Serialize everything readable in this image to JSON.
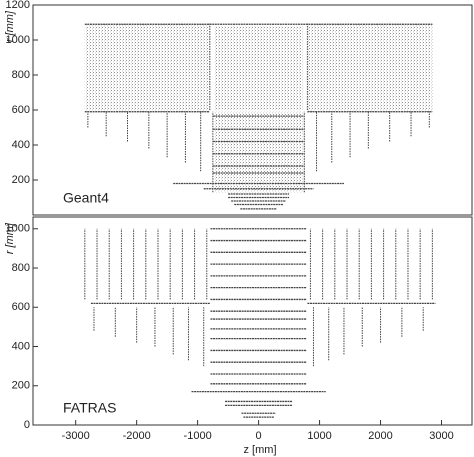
{
  "chart_data": [
    {
      "type": "scatter",
      "label": "Geant4",
      "ylabel": "r [mm]",
      "color": "#444",
      "xlim": [
        -3700,
        3500
      ],
      "ylim": [
        0,
        1200
      ],
      "yticks": [
        200,
        400,
        600,
        800,
        1000,
        1200
      ],
      "regions": [
        [
          -2850,
          -800,
          590,
          1090
        ],
        [
          800,
          2850,
          590,
          1090
        ],
        [
          -730,
          730,
          600,
          1080
        ],
        [
          -730,
          730,
          130,
          590
        ]
      ],
      "hlines": [
        [
          -2850,
          2850,
          1090
        ],
        [
          -2850,
          -800,
          590
        ],
        [
          800,
          2850,
          590
        ],
        [
          -750,
          750,
          565
        ],
        [
          -750,
          750,
          490
        ],
        [
          -750,
          750,
          420
        ],
        [
          -750,
          750,
          350
        ],
        [
          -750,
          750,
          280
        ],
        [
          -750,
          750,
          240
        ],
        [
          -1400,
          1400,
          180
        ],
        [
          -900,
          900,
          150
        ],
        [
          -500,
          500,
          120
        ],
        [
          -500,
          500,
          100
        ],
        [
          -450,
          450,
          80
        ],
        [
          -400,
          400,
          60
        ],
        [
          -300,
          300,
          35
        ]
      ],
      "vlines": [
        [
          -800,
          600,
          1100
        ],
        [
          800,
          600,
          1100
        ],
        [
          -750,
          130,
          590
        ],
        [
          750,
          130,
          590
        ],
        [
          -950,
          250,
          590
        ],
        [
          950,
          250,
          590
        ],
        [
          -1200,
          300,
          590
        ],
        [
          1200,
          300,
          590
        ],
        [
          -1500,
          330,
          590
        ],
        [
          1500,
          330,
          590
        ],
        [
          -1800,
          380,
          590
        ],
        [
          1800,
          380,
          590
        ],
        [
          -2150,
          420,
          590
        ],
        [
          2150,
          420,
          590
        ],
        [
          -2500,
          450,
          590
        ],
        [
          2500,
          450,
          590
        ],
        [
          -2800,
          500,
          590
        ],
        [
          2800,
          500,
          590
        ]
      ]
    },
    {
      "type": "scatter",
      "label": "FATRAS",
      "xlabel": "z [mm]",
      "ylabel": "r [mm]",
      "color": "#444",
      "xlim": [
        -3700,
        3500
      ],
      "ylim": [
        0,
        1060
      ],
      "yticks": [
        0,
        200,
        400,
        600,
        800,
        1000
      ],
      "xticks": [
        -3000,
        -2000,
        -1000,
        0,
        1000,
        2000,
        3000
      ],
      "regions": [],
      "hlines": [
        [
          -790,
          790,
          1000
        ],
        [
          -790,
          790,
          940
        ],
        [
          -790,
          790,
          880
        ],
        [
          -790,
          790,
          820
        ],
        [
          -790,
          790,
          760
        ],
        [
          -790,
          790,
          700
        ],
        [
          -790,
          790,
          640
        ],
        [
          -790,
          790,
          580
        ],
        [
          -790,
          790,
          540
        ],
        [
          -790,
          790,
          490
        ],
        [
          -790,
          790,
          440
        ],
        [
          -790,
          790,
          380
        ],
        [
          -790,
          790,
          320
        ],
        [
          -790,
          790,
          260
        ],
        [
          -790,
          790,
          210
        ],
        [
          -2750,
          -800,
          620
        ],
        [
          800,
          2900,
          620
        ],
        [
          -1100,
          1100,
          170
        ],
        [
          -550,
          550,
          120
        ],
        [
          -550,
          550,
          100
        ],
        [
          -280,
          280,
          60
        ],
        [
          -250,
          250,
          40
        ]
      ],
      "vlines": [
        [
          -2850,
          640,
          1000
        ],
        [
          -2650,
          640,
          1000
        ],
        [
          -2450,
          640,
          1000
        ],
        [
          -2250,
          640,
          1000
        ],
        [
          -2050,
          640,
          1000
        ],
        [
          -1850,
          640,
          1000
        ],
        [
          -1650,
          640,
          1000
        ],
        [
          -1450,
          640,
          1000
        ],
        [
          -1250,
          640,
          1000
        ],
        [
          -1050,
          640,
          1000
        ],
        [
          -850,
          640,
          1000
        ],
        [
          850,
          640,
          1000
        ],
        [
          1050,
          640,
          1000
        ],
        [
          1250,
          640,
          1000
        ],
        [
          1450,
          640,
          1000
        ],
        [
          1650,
          640,
          1000
        ],
        [
          1850,
          640,
          1000
        ],
        [
          2050,
          640,
          1000
        ],
        [
          2250,
          640,
          1000
        ],
        [
          2450,
          640,
          1000
        ],
        [
          2650,
          640,
          1000
        ],
        [
          2850,
          640,
          1000
        ],
        [
          -900,
          300,
          600
        ],
        [
          900,
          300,
          600
        ],
        [
          -1150,
          330,
          600
        ],
        [
          1150,
          330,
          600
        ],
        [
          -1400,
          360,
          600
        ],
        [
          1400,
          360,
          600
        ],
        [
          -1700,
          400,
          600
        ],
        [
          1700,
          400,
          600
        ],
        [
          -2000,
          420,
          600
        ],
        [
          2000,
          420,
          600
        ],
        [
          -2350,
          450,
          600
        ],
        [
          2350,
          450,
          600
        ],
        [
          -2700,
          480,
          600
        ],
        [
          2700,
          480,
          600
        ]
      ]
    }
  ]
}
